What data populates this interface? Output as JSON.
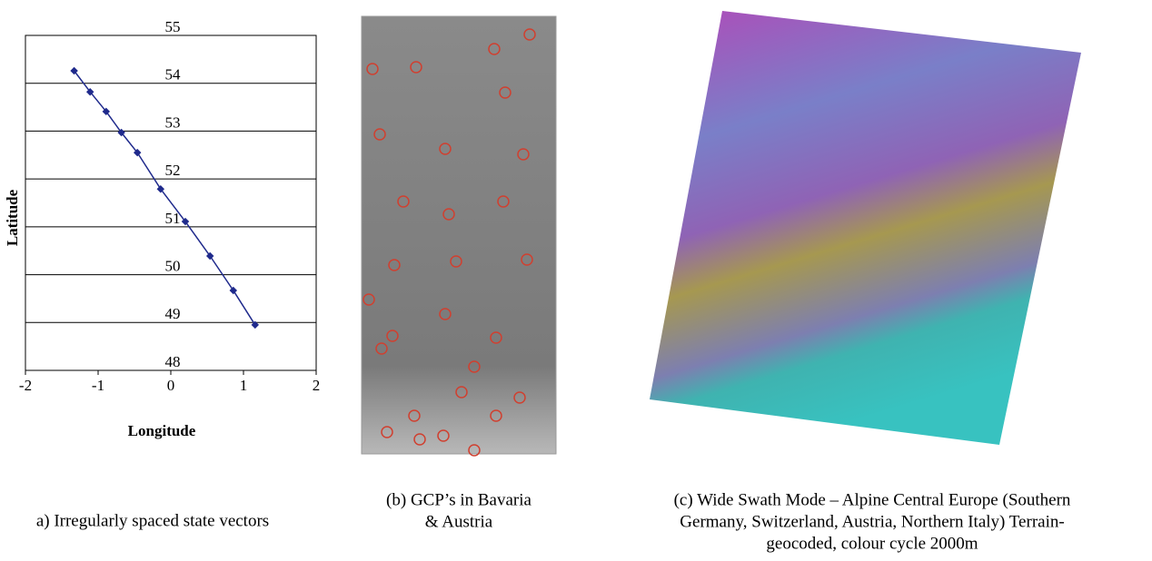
{
  "chart_data": {
    "type": "line",
    "x_label": "Longitude",
    "y_label": "Latitude",
    "x": [
      -1.33,
      -1.11,
      -0.89,
      -0.68,
      -0.46,
      -0.14,
      0.2,
      0.54,
      0.86,
      1.16
    ],
    "values": [
      54.26,
      53.82,
      53.41,
      52.97,
      52.55,
      51.79,
      51.11,
      50.39,
      49.67,
      48.95
    ],
    "color": "#1f2a8c",
    "xlim": [
      -2,
      2
    ],
    "xticks": [
      -2,
      -1,
      0,
      1,
      2
    ],
    "ylim": [
      48,
      55
    ],
    "yticks": [
      48,
      49,
      50,
      51,
      52,
      53,
      54,
      55
    ],
    "grid": true
  },
  "captions": {
    "a": [
      "a) Irregularly spaced state vectors"
    ],
    "b": [
      "(b) GCP’s in Bavaria",
      "& Austria"
    ],
    "c": [
      "(c) Wide Swath Mode – Alpine Central Europe (Southern",
      "Germany, Switzerland, Austria, Northern Italy) Terrain-",
      "geocoded, colour cycle 2000m"
    ]
  }
}
